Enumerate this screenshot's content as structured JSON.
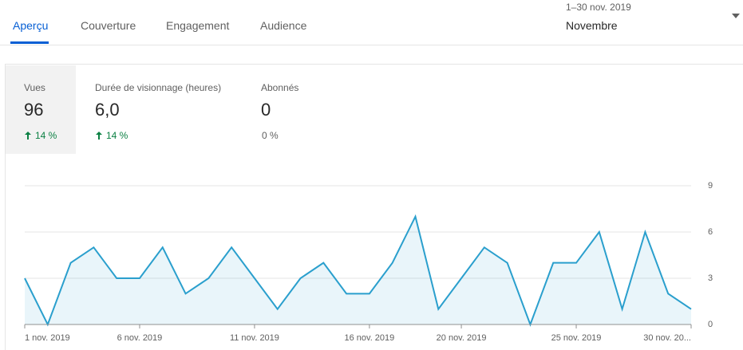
{
  "tabs": [
    "Aperçu",
    "Couverture",
    "Engagement",
    "Audience"
  ],
  "date_range": {
    "subtitle": "1–30 nov. 2019",
    "label": "Novembre"
  },
  "metrics": [
    {
      "label": "Vues",
      "value": "96",
      "change": "14 %"
    },
    {
      "label": "Durée de visionnage (heures)",
      "value": "6,0",
      "change": "14 %"
    },
    {
      "label": "Abonnés",
      "value": "0",
      "change": "0 %"
    }
  ],
  "chart_data": {
    "type": "area",
    "categories": [
      "1 nov. 2019",
      null,
      null,
      null,
      null,
      "6 nov. 2019",
      null,
      null,
      null,
      null,
      "11 nov. 2019",
      null,
      null,
      null,
      null,
      "16 nov. 2019",
      null,
      null,
      null,
      "20 nov. 2019",
      null,
      null,
      null,
      null,
      "25 nov. 2019",
      null,
      null,
      null,
      null,
      "30 nov. 20..."
    ],
    "series": [
      {
        "name": "Vues",
        "color": "#2a9fcd",
        "values": [
          3,
          0,
          4,
          5,
          3,
          3,
          5,
          2,
          3,
          5,
          3,
          1,
          3,
          4,
          2,
          2,
          4,
          7,
          1,
          3,
          5,
          4,
          0,
          4,
          4,
          6,
          1,
          6,
          2,
          1
        ]
      }
    ],
    "ylim": [
      0,
      9
    ],
    "yticks": [
      0,
      3,
      6,
      9
    ],
    "grid": true
  }
}
